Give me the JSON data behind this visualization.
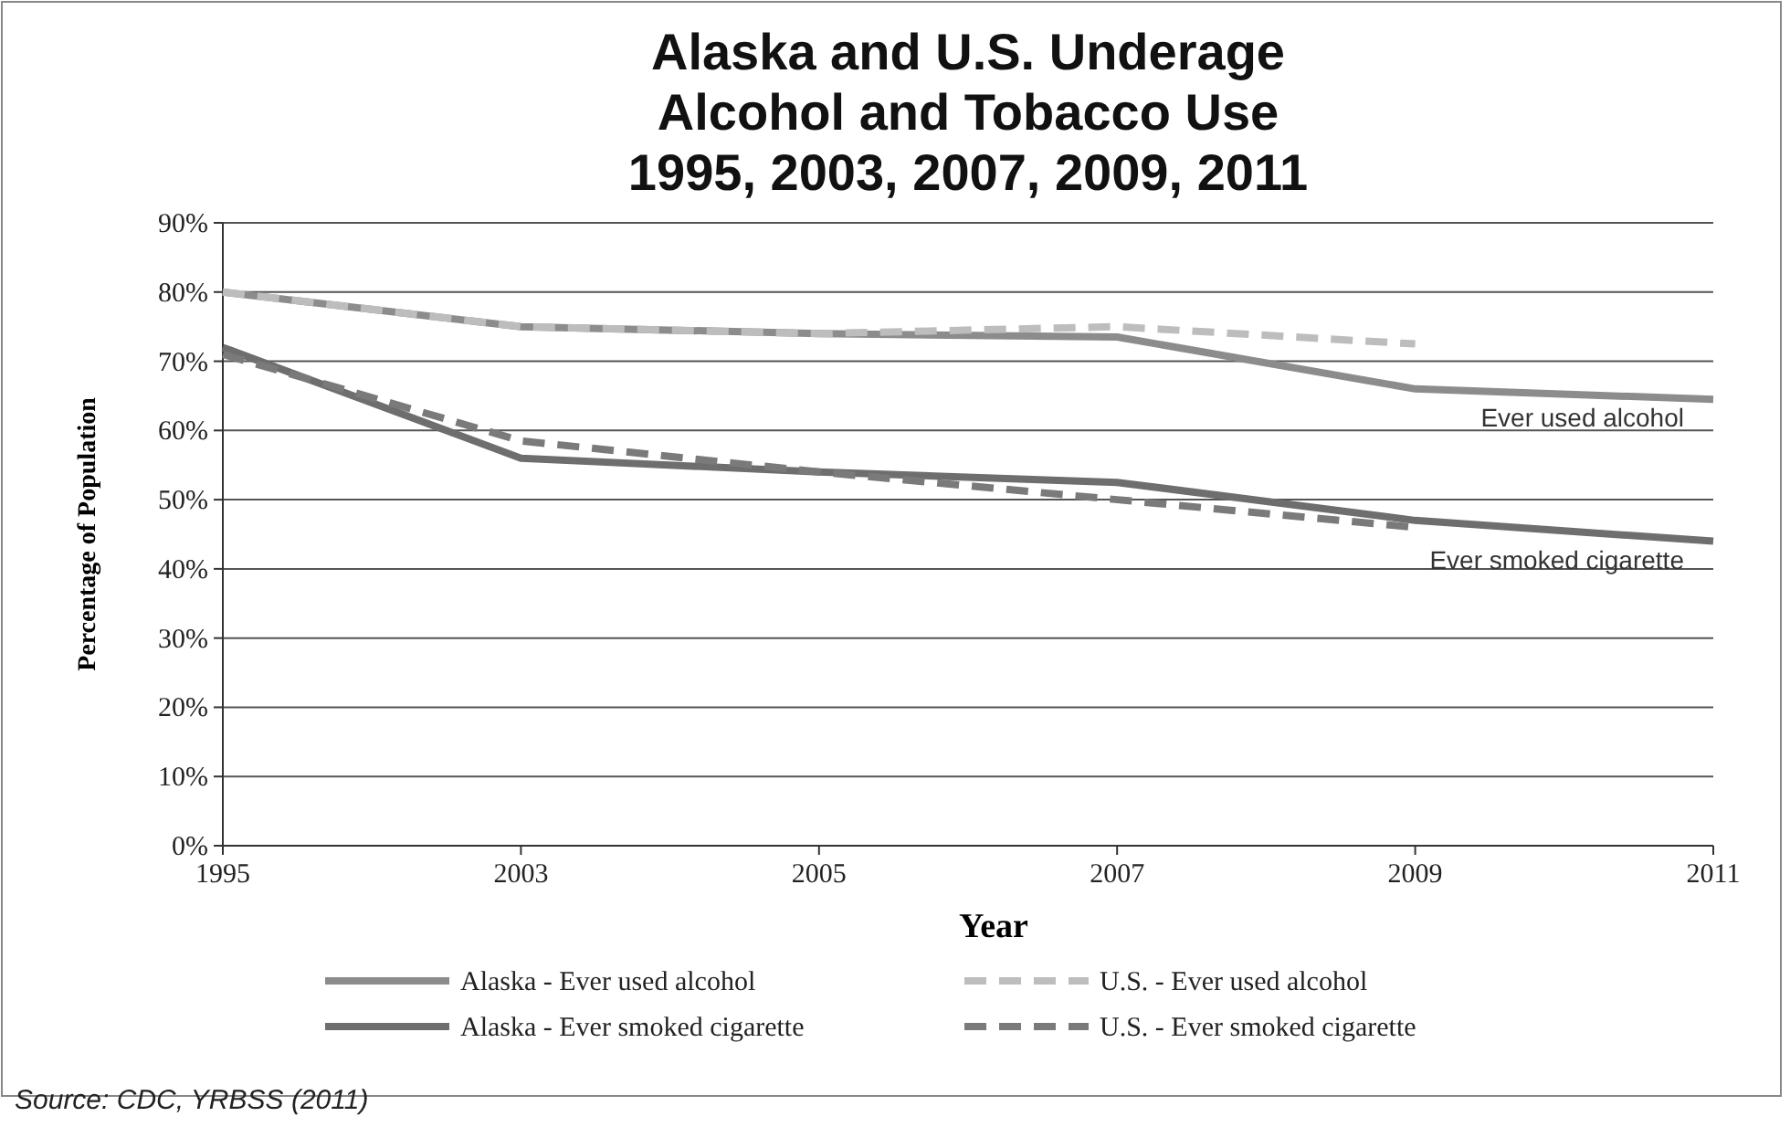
{
  "chart_data": {
    "type": "line",
    "title": "Alaska  and U.S. Underage\nAlcohol and Tobacco Use\n1995, 2003, 2007, 2009, 2011",
    "xlabel": "Year",
    "ylabel": "Percentage of Population",
    "categories": [
      "1995",
      "2003",
      "2005",
      "2007",
      "2009",
      "2011"
    ],
    "series": [
      {
        "name": "Alaska - Ever used alcohol",
        "color": "#8c8c8c",
        "line_style": "solid",
        "values": [
          80,
          75,
          74,
          73.5,
          66,
          64.5
        ]
      },
      {
        "name": "U.S. - Ever used alcohol",
        "color": "#bdbdbd",
        "line_style": "dashed",
        "values": [
          80,
          75,
          74,
          75,
          72.5,
          null
        ]
      },
      {
        "name": "Alaska - Ever smoked cigarette",
        "color": "#6e6e6e",
        "line_style": "solid",
        "values": [
          72,
          56,
          54,
          52.5,
          47,
          44
        ]
      },
      {
        "name": "U.S. - Ever smoked cigarette",
        "color": "#7a7a7a",
        "line_style": "dashed",
        "values": [
          71,
          58.5,
          54,
          50,
          46,
          null
        ]
      }
    ],
    "ylim": [
      0,
      90
    ],
    "yticks": [
      {
        "value": 0,
        "label": "0%"
      },
      {
        "value": 10,
        "label": "10%"
      },
      {
        "value": 20,
        "label": "20%"
      },
      {
        "value": 30,
        "label": "30%"
      },
      {
        "value": 40,
        "label": "40%"
      },
      {
        "value": 50,
        "label": "50%"
      },
      {
        "value": 60,
        "label": "60%"
      },
      {
        "value": 70,
        "label": "70%"
      },
      {
        "value": 80,
        "label": "80%"
      },
      {
        "value": 90,
        "label": "90%"
      }
    ],
    "grid": "y",
    "legend": "bottom",
    "marker": "none",
    "annotations": [
      {
        "text": "Ever used alcohol",
        "x": "2011",
        "y": 64.5
      },
      {
        "text": "Ever smoked cigarette",
        "x": "2011",
        "y": 44
      },
      "Source: CDC, YRBSS (2011)"
    ]
  }
}
